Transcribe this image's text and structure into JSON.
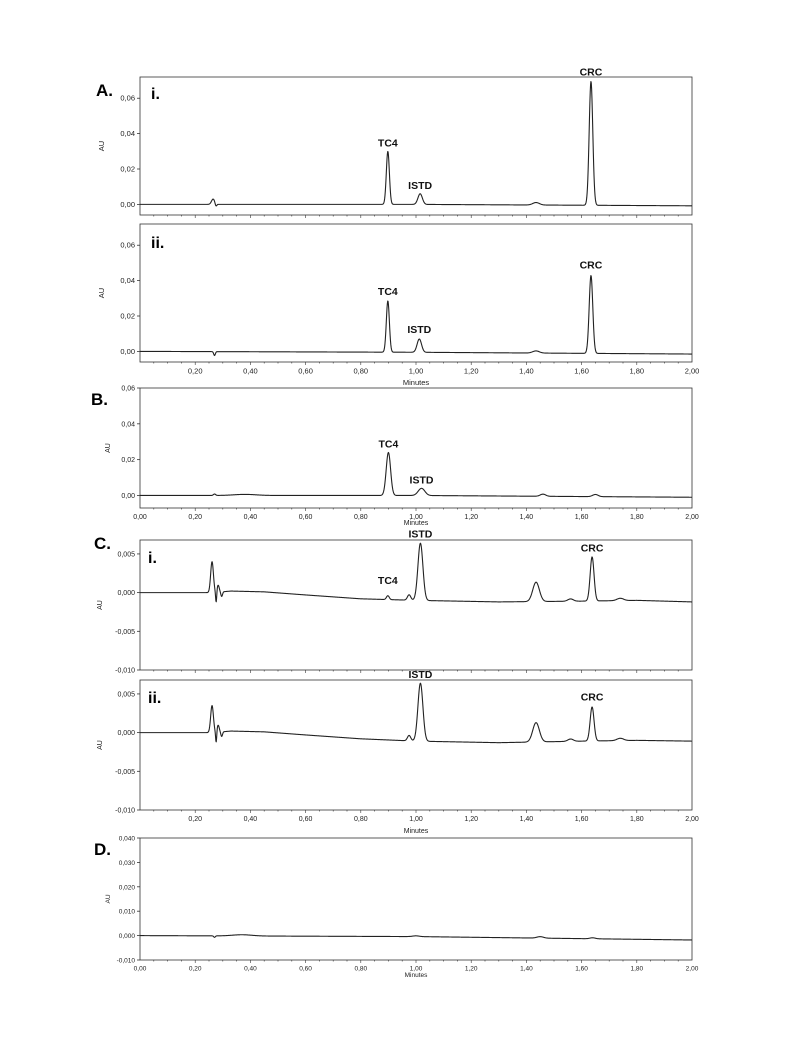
{
  "chart_data": [
    {
      "type": "line",
      "section_label": "A.",
      "panel_label": "i.",
      "ylabel": "AU",
      "xlabel": "",
      "xlim": [
        0,
        2.0
      ],
      "ylim": [
        -0.006,
        0.072
      ],
      "yticks": [
        "0,00",
        "0,02",
        "0,04",
        "0,06"
      ],
      "ytick_values": [
        0.0,
        0.02,
        0.04,
        0.06
      ],
      "xticks": [],
      "xtick_values": [],
      "baseline": [
        [
          0.0,
          0.0
        ],
        [
          1.0,
          0.0
        ],
        [
          2.0,
          -0.0008
        ]
      ],
      "peaks": [
        {
          "x": 0.265,
          "h": 0.003,
          "w": 0.006
        },
        {
          "x": 0.275,
          "h": -0.0015,
          "w": 0.003
        },
        {
          "x": 0.898,
          "h": 0.03,
          "w": 0.0055
        },
        {
          "x": 1.015,
          "h": 0.006,
          "w": 0.008
        },
        {
          "x": 1.435,
          "h": 0.0014,
          "w": 0.012
        },
        {
          "x": 1.634,
          "h": 0.07,
          "w": 0.0065
        }
      ],
      "peak_labels": [
        {
          "text": "TC4",
          "x": 0.898,
          "y": 0.03
        },
        {
          "text": "ISTD",
          "x": 1.015,
          "y": 0.006
        },
        {
          "text": "CRC",
          "x": 1.634,
          "y": 0.07
        }
      ]
    },
    {
      "type": "line",
      "section_label": "",
      "panel_label": "ii.",
      "ylabel": "AU",
      "xlabel": "Minutes",
      "xlim": [
        0,
        2.0
      ],
      "ylim": [
        -0.006,
        0.072
      ],
      "yticks": [
        "0,00",
        "0,02",
        "0,04",
        "0,06"
      ],
      "ytick_values": [
        0.0,
        0.02,
        0.04,
        0.06
      ],
      "xticks": [
        "0,20",
        "0,40",
        "0,60",
        "0,80",
        "1,00",
        "1,20",
        "1,40",
        "1,60",
        "1,80",
        "2,00"
      ],
      "xtick_values": [
        0.2,
        0.4,
        0.6,
        0.8,
        1.0,
        1.2,
        1.4,
        1.6,
        1.8,
        2.0
      ],
      "baseline": [
        [
          0.0,
          0.0
        ],
        [
          1.0,
          -0.0005
        ],
        [
          2.0,
          -0.0015
        ]
      ],
      "peaks": [
        {
          "x": 0.27,
          "h": -0.0022,
          "w": 0.003
        },
        {
          "x": 0.898,
          "h": 0.029,
          "w": 0.0055
        },
        {
          "x": 1.012,
          "h": 0.0075,
          "w": 0.008
        },
        {
          "x": 1.435,
          "h": 0.0012,
          "w": 0.012
        },
        {
          "x": 1.634,
          "h": 0.044,
          "w": 0.0065
        }
      ],
      "peak_labels": [
        {
          "text": "TC4",
          "x": 0.898,
          "y": 0.029
        },
        {
          "text": "ISTD",
          "x": 1.012,
          "y": 0.0075
        },
        {
          "text": "CRC",
          "x": 1.634,
          "y": 0.044
        }
      ]
    },
    {
      "type": "line",
      "section_label": "B.",
      "panel_label": "",
      "ylabel": "AU",
      "xlabel": "Minutes",
      "xlim": [
        0,
        2.0
      ],
      "ylim": [
        -0.007,
        0.06
      ],
      "yticks": [
        "0,00",
        "0,02",
        "0,04",
        "0,06"
      ],
      "ytick_values": [
        0.0,
        0.02,
        0.04,
        0.06
      ],
      "xticks": [
        "0,00",
        "0,20",
        "0,40",
        "0,60",
        "0,80",
        "1,00",
        "1,20",
        "1,40",
        "1,60",
        "1,80",
        "2,00"
      ],
      "xtick_values": [
        0.0,
        0.2,
        0.4,
        0.6,
        0.8,
        1.0,
        1.2,
        1.4,
        1.6,
        1.8,
        2.0
      ],
      "baseline": [
        [
          0.0,
          0.0
        ],
        [
          1.0,
          0.0
        ],
        [
          2.0,
          -0.001
        ]
      ],
      "peaks": [
        {
          "x": 0.27,
          "h": 0.0008,
          "w": 0.004
        },
        {
          "x": 0.38,
          "h": 0.0006,
          "w": 0.04
        },
        {
          "x": 0.9,
          "h": 0.024,
          "w": 0.008
        },
        {
          "x": 1.02,
          "h": 0.004,
          "w": 0.012
        },
        {
          "x": 1.46,
          "h": 0.0012,
          "w": 0.01
        },
        {
          "x": 1.65,
          "h": 0.0012,
          "w": 0.01
        }
      ],
      "peak_labels": [
        {
          "text": "TC4",
          "x": 0.9,
          "y": 0.024
        },
        {
          "text": "ISTD",
          "x": 1.02,
          "y": 0.004
        }
      ]
    },
    {
      "type": "line",
      "section_label": "C.",
      "panel_label": "i.",
      "ylabel": "AU",
      "xlabel": "",
      "xlim": [
        0,
        2.0
      ],
      "ylim": [
        -0.01,
        0.0068
      ],
      "yticks": [
        "-0,010",
        "-0,005",
        "0,000",
        "0,005"
      ],
      "ytick_values": [
        -0.01,
        -0.005,
        0.0,
        0.005
      ],
      "xticks": [],
      "xtick_values": [],
      "baseline": [
        [
          0.0,
          0.0
        ],
        [
          0.26,
          0.0
        ],
        [
          0.33,
          0.0002
        ],
        [
          0.45,
          0.0001
        ],
        [
          0.6,
          -0.0003
        ],
        [
          0.8,
          -0.0008
        ],
        [
          1.0,
          -0.001
        ],
        [
          1.3,
          -0.0012
        ],
        [
          1.6,
          -0.0011
        ],
        [
          1.8,
          -0.001
        ],
        [
          2.0,
          -0.0012
        ]
      ],
      "peaks": [
        {
          "x": 0.261,
          "h": 0.004,
          "w": 0.005
        },
        {
          "x": 0.276,
          "h": -0.0015,
          "w": 0.002
        },
        {
          "x": 0.283,
          "h": 0.0009,
          "w": 0.004
        },
        {
          "x": 0.296,
          "h": -0.0006,
          "w": 0.003
        },
        {
          "x": 0.898,
          "h": 0.0005,
          "w": 0.005
        },
        {
          "x": 0.975,
          "h": 0.0007,
          "w": 0.006
        },
        {
          "x": 1.016,
          "h": 0.0074,
          "w": 0.009
        },
        {
          "x": 1.435,
          "h": 0.0025,
          "w": 0.012
        },
        {
          "x": 1.56,
          "h": 0.0003,
          "w": 0.01
        },
        {
          "x": 1.638,
          "h": 0.0057,
          "w": 0.007
        },
        {
          "x": 1.74,
          "h": 0.0003,
          "w": 0.012
        }
      ],
      "peak_labels": [
        {
          "text": "TC4",
          "x": 0.898,
          "y": 0.0005
        },
        {
          "text": "ISTD",
          "x": 1.016,
          "y": 0.0065
        },
        {
          "text": "CRC",
          "x": 1.638,
          "y": 0.0047
        }
      ]
    },
    {
      "type": "line",
      "section_label": "",
      "panel_label": "ii.",
      "ylabel": "AU",
      "xlabel": "Minutes",
      "xlim": [
        0,
        2.0
      ],
      "ylim": [
        -0.01,
        0.0068
      ],
      "yticks": [
        "-0,010",
        "-0,005",
        "0,000",
        "0,005"
      ],
      "ytick_values": [
        -0.01,
        -0.005,
        0.0,
        0.005
      ],
      "xticks": [
        "0,20",
        "0,40",
        "0,60",
        "0,80",
        "1,00",
        "1,20",
        "1,40",
        "1,60",
        "1,80",
        "2,00"
      ],
      "xtick_values": [
        0.2,
        0.4,
        0.6,
        0.8,
        1.0,
        1.2,
        1.4,
        1.6,
        1.8,
        2.0
      ],
      "baseline": [
        [
          0.0,
          0.0
        ],
        [
          0.26,
          0.0
        ],
        [
          0.33,
          0.0002
        ],
        [
          0.45,
          0.0001
        ],
        [
          0.6,
          -0.0003
        ],
        [
          0.8,
          -0.0008
        ],
        [
          1.0,
          -0.0011
        ],
        [
          1.3,
          -0.0013
        ],
        [
          1.6,
          -0.0011
        ],
        [
          1.8,
          -0.001
        ],
        [
          2.0,
          -0.0011
        ]
      ],
      "peaks": [
        {
          "x": 0.261,
          "h": 0.0035,
          "w": 0.005
        },
        {
          "x": 0.276,
          "h": -0.0015,
          "w": 0.002
        },
        {
          "x": 0.283,
          "h": 0.0009,
          "w": 0.004
        },
        {
          "x": 0.296,
          "h": -0.0006,
          "w": 0.003
        },
        {
          "x": 0.975,
          "h": 0.0007,
          "w": 0.006
        },
        {
          "x": 1.016,
          "h": 0.0075,
          "w": 0.009
        },
        {
          "x": 1.435,
          "h": 0.0025,
          "w": 0.012
        },
        {
          "x": 1.56,
          "h": 0.0003,
          "w": 0.01
        },
        {
          "x": 1.638,
          "h": 0.0044,
          "w": 0.007
        },
        {
          "x": 1.74,
          "h": 0.0003,
          "w": 0.012
        }
      ],
      "peak_labels": [
        {
          "text": "ISTD",
          "x": 1.016,
          "y": 0.0064
        },
        {
          "text": "CRC",
          "x": 1.638,
          "y": 0.0035
        }
      ]
    },
    {
      "type": "line",
      "section_label": "D.",
      "panel_label": "",
      "ylabel": "AU",
      "xlabel": "Minutes",
      "xlim": [
        0,
        2.0
      ],
      "ylim": [
        -0.01,
        0.04
      ],
      "yticks": [
        "-0,010",
        "0,000",
        "0,010",
        "0,020",
        "0,030",
        "0,040"
      ],
      "ytick_values": [
        -0.01,
        0.0,
        0.01,
        0.02,
        0.03,
        0.04
      ],
      "xticks": [
        "0,00",
        "0,20",
        "0,40",
        "0,60",
        "0,80",
        "1,00",
        "1,20",
        "1,40",
        "1,60",
        "1,80",
        "2,00"
      ],
      "xtick_values": [
        0.0,
        0.2,
        0.4,
        0.6,
        0.8,
        1.0,
        1.2,
        1.4,
        1.6,
        1.8,
        2.0
      ],
      "baseline": [
        [
          0.0,
          0.0
        ],
        [
          1.0,
          -0.0004
        ],
        [
          2.0,
          -0.0018
        ]
      ],
      "peaks": [
        {
          "x": 0.27,
          "h": -0.0006,
          "w": 0.003
        },
        {
          "x": 0.37,
          "h": 0.0005,
          "w": 0.035
        },
        {
          "x": 1.0,
          "h": 0.0003,
          "w": 0.012
        },
        {
          "x": 1.45,
          "h": 0.0006,
          "w": 0.012
        },
        {
          "x": 1.64,
          "h": 0.0004,
          "w": 0.01
        }
      ],
      "peak_labels": []
    }
  ]
}
